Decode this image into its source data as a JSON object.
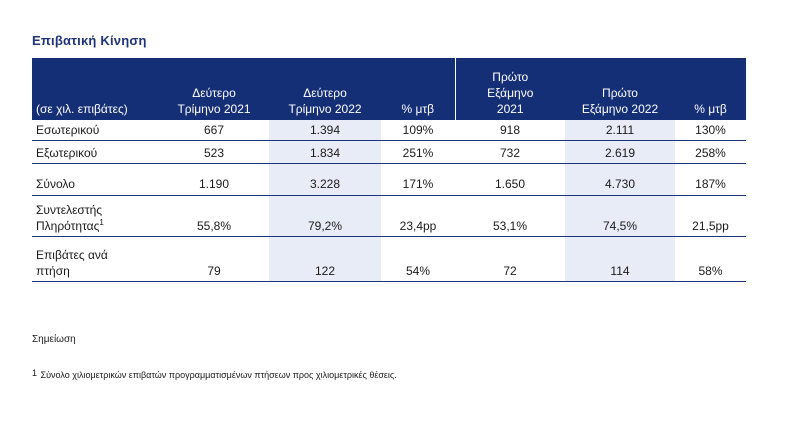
{
  "title": "Επιβατική Κίνηση",
  "table": {
    "header": {
      "unit": "(σε χιλ. επιβάτες)",
      "col1": [
        "Δεύτερο",
        "Τρίμηνο 2021"
      ],
      "col2": [
        "Δεύτερο",
        "Τρίμηνο 2022"
      ],
      "col3": "% μτβ",
      "col4": [
        "Πρώτο",
        "Εξάμηνο",
        "2021"
      ],
      "col5": [
        "Πρώτο",
        "Εξάμηνο 2022"
      ],
      "col6": "% μτβ"
    },
    "rows": [
      {
        "label": "Εσωτερικού",
        "values": [
          "667",
          "1.394",
          "109%",
          "918",
          "2.111",
          "130%"
        ]
      },
      {
        "label": "Εξωτερικού",
        "values": [
          "523",
          "1.834",
          "251%",
          "732",
          "2.619",
          "258%"
        ]
      },
      {
        "label": "Σύνολο",
        "values": [
          "1.190",
          "3.228",
          "171%",
          "1.650",
          "4.730",
          "187%"
        ]
      },
      {
        "label_lines": [
          "Συντελεστής",
          "Πληρότητας"
        ],
        "footnote_ref": "1",
        "values": [
          "55,8%",
          "79,2%",
          "23,4pp",
          "53,1%",
          "74,5%",
          "21,5pp"
        ]
      },
      {
        "label_lines": [
          "Επιβάτες ανά",
          "πτήση"
        ],
        "values": [
          "79",
          "122",
          "54%",
          "72",
          "114",
          "58%"
        ]
      }
    ]
  },
  "note_label": "Σημείωση",
  "footnote": {
    "mark": "1",
    "text": "Σύνολο χιλιομετρικών επιβατών προγραμματισμένων πτήσεων προς χιλιομετρικές θέσεις."
  }
}
